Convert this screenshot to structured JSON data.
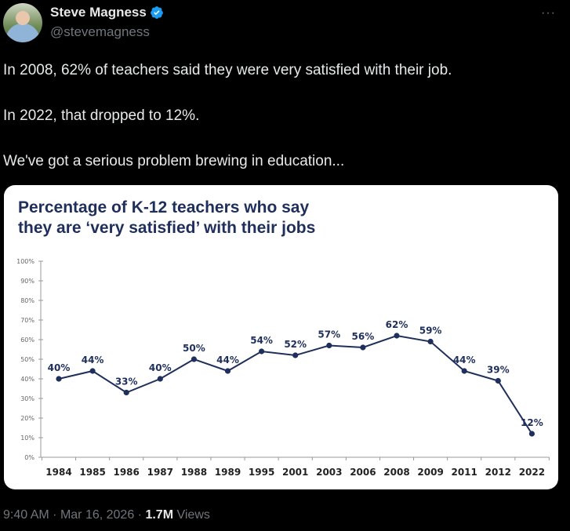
{
  "tweet": {
    "author_name": "Steve Magness",
    "handle": "@stevemagness",
    "verified": true,
    "more_icon": "more-horizontal-icon",
    "paragraphs": [
      "In 2008, 62% of teachers said they were very satisfied with their job.",
      "In 2022, that dropped to 12%.",
      "We've got a serious problem brewing in education..."
    ],
    "time": "9:40 AM",
    "date": "Mar 16, 2026",
    "views_count": "1.7M",
    "views_label": "Views",
    "separator": "·"
  },
  "colors": {
    "line": "#1f2f5c",
    "axis": "#999999",
    "verified": "#1d9bf0"
  },
  "chart_data": {
    "type": "line",
    "title": "Percentage of K-12 teachers who say they are ‘very satisfied’ with their jobs",
    "title_lines": [
      "Percentage of K-12 teachers who say",
      "they are ‘very satisfied’ with their jobs"
    ],
    "xlabel": "",
    "ylabel": "",
    "categories": [
      "1984",
      "1985",
      "1986",
      "1987",
      "1988",
      "1989",
      "1995",
      "2001",
      "2003",
      "2006",
      "2008",
      "2009",
      "2011",
      "2012",
      "2022"
    ],
    "values": [
      40,
      44,
      33,
      40,
      50,
      44,
      54,
      52,
      57,
      56,
      62,
      59,
      44,
      39,
      12
    ],
    "data_labels": [
      "40%",
      "44%",
      "33%",
      "40%",
      "50%",
      "44%",
      "54%",
      "52%",
      "57%",
      "56%",
      "62%",
      "59%",
      "44%",
      "39%",
      "12%"
    ],
    "ylim": [
      0,
      100
    ],
    "yticks": [
      0,
      10,
      20,
      30,
      40,
      50,
      60,
      70,
      80,
      90,
      100
    ],
    "ytick_labels": [
      "0%",
      "10%",
      "20%",
      "30%",
      "40%",
      "50%",
      "60%",
      "70%",
      "80%",
      "90%",
      "100%"
    ],
    "grid": false,
    "legend": "none"
  }
}
